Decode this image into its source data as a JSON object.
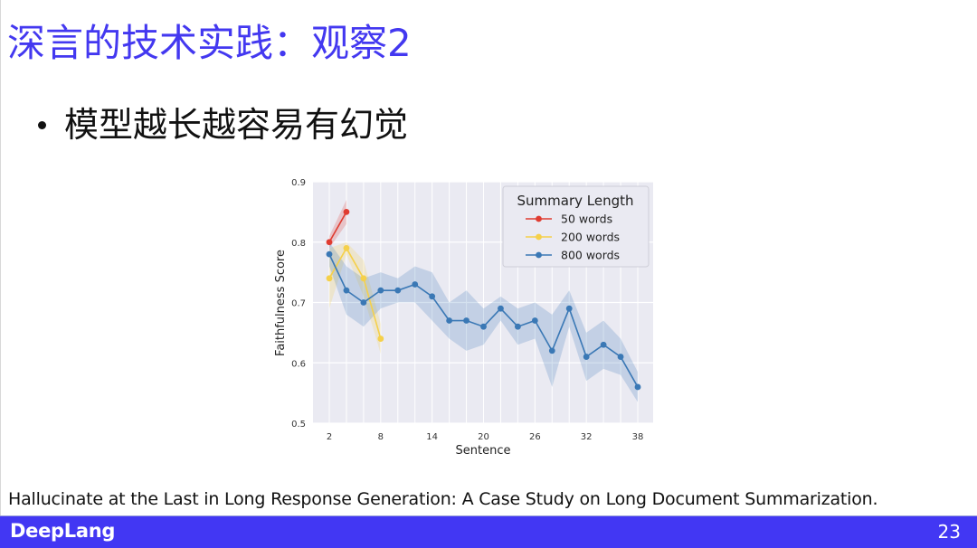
{
  "slide": {
    "title": "深言的技术实践：观察2",
    "bullets": [
      "模型越长越容易有幻觉"
    ],
    "caption": "Hallucinate at the Last in Long Response Generation: A Case Study on Long Document Summarization.",
    "footer": {
      "brand": "DeepLang",
      "page_number": "23"
    },
    "colors": {
      "title": "#4338f0",
      "footer_bg": "#4237f3"
    }
  },
  "chart_data": {
    "type": "line",
    "title": "",
    "xlabel": "Sentence",
    "ylabel": "Faithfulness Score",
    "xlim": [
      0.2,
      40
    ],
    "ylim": [
      0.5,
      0.9
    ],
    "xticks": [
      2,
      8,
      14,
      20,
      26,
      32,
      38
    ],
    "yticks": [
      0.5,
      0.6,
      0.7,
      0.8,
      0.9
    ],
    "grid": true,
    "background": "#eaeaf2",
    "legend": {
      "title": "Summary Length",
      "position": "upper right"
    },
    "series": [
      {
        "name": "50 words",
        "color": "#e03c31",
        "x": [
          2,
          4
        ],
        "values": [
          0.8,
          0.85
        ],
        "ci_low": [
          0.79,
          0.83
        ],
        "ci_high": [
          0.81,
          0.87
        ]
      },
      {
        "name": "200 words",
        "color": "#f5d04a",
        "x": [
          2,
          4,
          6,
          8
        ],
        "values": [
          0.74,
          0.79,
          0.74,
          0.64
        ],
        "ci_low": [
          0.69,
          0.78,
          0.71,
          0.615
        ],
        "ci_high": [
          0.79,
          0.8,
          0.77,
          0.665
        ]
      },
      {
        "name": "800 words",
        "color": "#3a78b5",
        "x": [
          2,
          4,
          6,
          8,
          10,
          12,
          14,
          16,
          18,
          20,
          22,
          24,
          26,
          28,
          30,
          32,
          34,
          36,
          38
        ],
        "values": [
          0.78,
          0.72,
          0.7,
          0.72,
          0.72,
          0.73,
          0.71,
          0.67,
          0.67,
          0.66,
          0.69,
          0.66,
          0.67,
          0.62,
          0.69,
          0.61,
          0.63,
          0.61,
          0.56
        ],
        "ci_low": [
          0.76,
          0.68,
          0.66,
          0.69,
          0.7,
          0.7,
          0.67,
          0.64,
          0.62,
          0.63,
          0.67,
          0.63,
          0.64,
          0.56,
          0.66,
          0.57,
          0.59,
          0.58,
          0.535
        ],
        "ci_high": [
          0.8,
          0.76,
          0.74,
          0.75,
          0.74,
          0.76,
          0.75,
          0.7,
          0.72,
          0.69,
          0.71,
          0.69,
          0.7,
          0.68,
          0.72,
          0.65,
          0.67,
          0.64,
          0.585
        ]
      }
    ]
  }
}
